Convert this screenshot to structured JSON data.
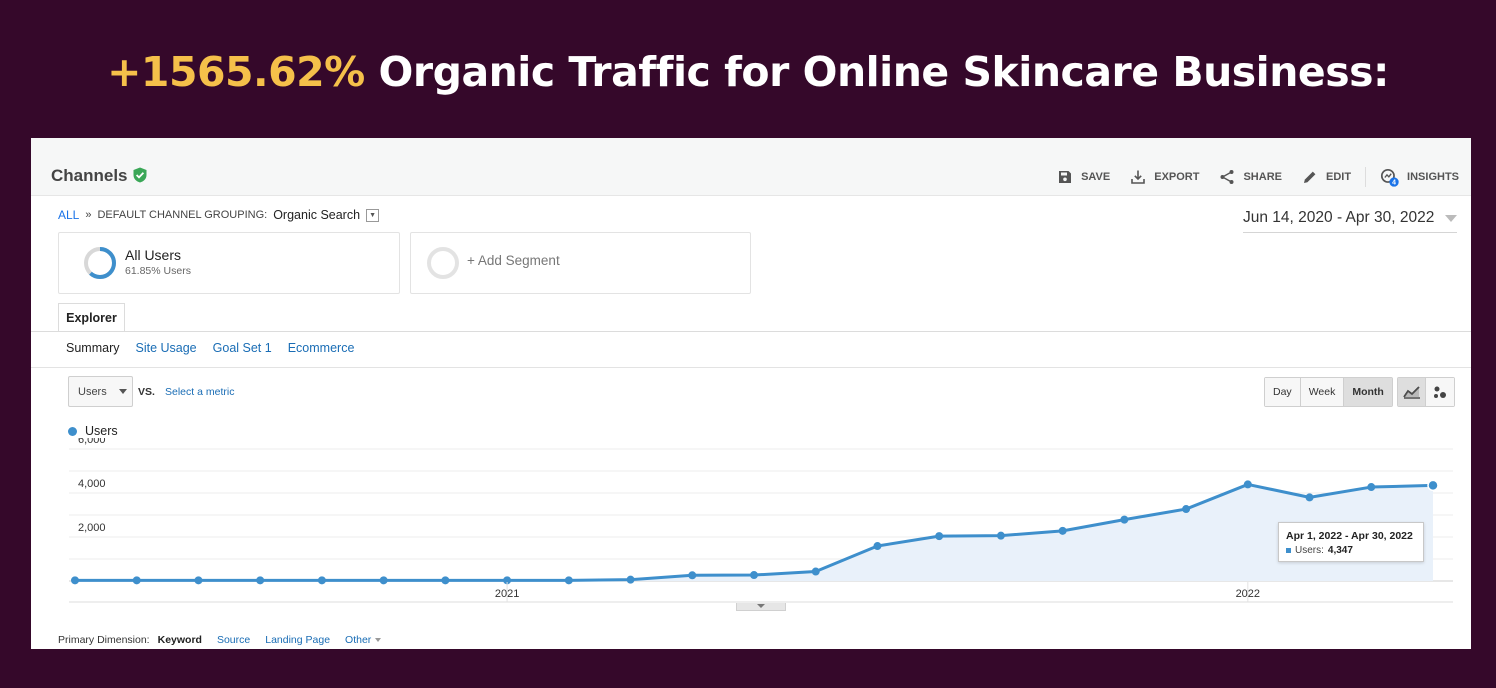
{
  "headline": {
    "accent": "+1565.62%",
    "rest": " Organic Traffic for Online Skincare Business:"
  },
  "report": {
    "title": "Channels"
  },
  "toolbar": {
    "save": "SAVE",
    "export": "EXPORT",
    "share": "SHARE",
    "edit": "EDIT",
    "insights": "INSIGHTS",
    "insights_badge": "4"
  },
  "breadcrumb": {
    "all": "ALL",
    "separator": "»",
    "grouping_label": "DEFAULT CHANNEL GROUPING:",
    "grouping_value": "Organic Search"
  },
  "date_range": "Jun 14, 2020 - Apr 30, 2022",
  "segments": [
    {
      "label": "All Users",
      "sub": "61.85% Users",
      "ring_fraction": 0.6185
    },
    {
      "label": "+ Add Segment"
    }
  ],
  "tabs": {
    "explorer": "Explorer"
  },
  "subtabs": {
    "summary": "Summary",
    "site_usage": "Site Usage",
    "goal_set": "Goal Set 1",
    "ecommerce": "Ecommerce"
  },
  "metric": {
    "selected": "Users",
    "vs": "VS.",
    "select_metric": "Select a metric"
  },
  "granularity": {
    "day": "Day",
    "week": "Week",
    "month": "Month",
    "selected": "Month"
  },
  "colors": {
    "series": "#3e8fcc",
    "area": "#e9f1fa",
    "accent": "#f5c04a",
    "background": "#35082a"
  },
  "chart_data": {
    "type": "line",
    "series": [
      {
        "name": "Users",
        "x": [
          "2020-06-14",
          "2020-07",
          "2020-08",
          "2020-09",
          "2020-10",
          "2020-11",
          "2020-12",
          "2021-01",
          "2021-02",
          "2021-03",
          "2021-04",
          "2021-05",
          "2021-06",
          "2021-07",
          "2021-08",
          "2021-09",
          "2021-10",
          "2021-11",
          "2021-12",
          "2022-01",
          "2022-02",
          "2022-03",
          "2022-04"
        ],
        "values": [
          30,
          30,
          30,
          30,
          30,
          30,
          30,
          30,
          30,
          60,
          260,
          270,
          430,
          1590,
          2040,
          2060,
          2280,
          2790,
          3270,
          4390,
          3800,
          4270,
          4347
        ]
      }
    ],
    "ylim": [
      0,
      6000
    ],
    "yticks": [
      {
        "value": 2000,
        "label": "2,000"
      },
      {
        "value": 4000,
        "label": "4,000"
      },
      {
        "value": 6000,
        "label": "6,000"
      }
    ],
    "xticks": [
      {
        "at": "2021-01",
        "label": "2021"
      },
      {
        "at": "2022-01",
        "label": "2022"
      }
    ],
    "grid": true,
    "legend": "top-left",
    "tooltip": {
      "title": "Apr 1, 2022 - Apr 30, 2022",
      "label": "Users:",
      "value": "4,347"
    }
  },
  "primary_dimension": {
    "label": "Primary Dimension:",
    "keyword": "Keyword",
    "source": "Source",
    "landing_page": "Landing Page",
    "other": "Other"
  }
}
